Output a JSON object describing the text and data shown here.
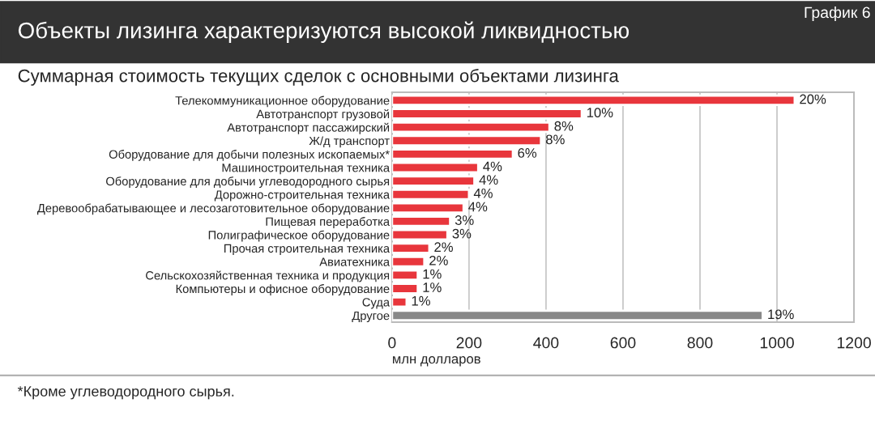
{
  "chart_data": {
    "type": "bar",
    "orientation": "horizontal",
    "title": "Объекты лизинга характеризуются высокой ликвидностью",
    "subtitle": "Суммарная стоимость текущих сделок с основными объектами лизинга",
    "xlabel": "млн долларов",
    "categories": [
      "Телекоммуникационное оборудование",
      "Автотранспорт грузовой",
      "Автотранспорт пассажирский",
      "Ж/д транспорт",
      "Оборудование для добычи полезных ископаемых*",
      "Машиностроительная техника",
      "Оборудование для добычи углеводородного сырья",
      "Дорожно-строительная техника",
      "Деревообрабатывающее и лесозаготовительное оборудование",
      "Пищевая переработка",
      "Полиграфическое оборудование",
      "Прочая строительная техника",
      "Авиатехника",
      "Сельскохозяйственная техника и продукция",
      "Компьютеры и офисное оборудование",
      "Суда",
      "Другое"
    ],
    "values": [
      1046,
      493,
      409,
      387,
      314,
      224,
      214,
      200,
      186,
      151,
      144,
      97,
      84,
      67,
      67,
      38,
      963
    ],
    "colors": [
      "#e8363c",
      "#e8363c",
      "#e8363c",
      "#e8363c",
      "#e8363c",
      "#e8363c",
      "#e8363c",
      "#e8363c",
      "#e8363c",
      "#e8363c",
      "#e8363c",
      "#e8363c",
      "#e8363c",
      "#e8363c",
      "#e8363c",
      "#e8363c",
      "#888888"
    ],
    "xlim": [
      0,
      1200
    ],
    "xticks": [
      0,
      200,
      400,
      600,
      800,
      1000,
      1200
    ],
    "grid": "x",
    "legend": false,
    "annotations": [
      "График 6",
      "*Кроме углеводородного сырья.",
      {
        "text": "20%",
        "x": 1046,
        "y": "Телекоммуникационное оборудование"
      },
      {
        "text": "10%",
        "x": 493,
        "y": "Автотранспорт грузовой"
      },
      {
        "text": "8%",
        "x": 409,
        "y": "Автотранспорт пассажирский"
      },
      {
        "text": "8%",
        "x": 387,
        "y": "Ж/д транспорт"
      },
      {
        "text": "6%",
        "x": 314,
        "y": "Оборудование для добычи полезных ископаемых*"
      },
      {
        "text": "4%",
        "x": 224,
        "y": "Машиностроительная техника"
      },
      {
        "text": "4%",
        "x": 214,
        "y": "Оборудование для добычи углеводородного сырья"
      },
      {
        "text": "4%",
        "x": 200,
        "y": "Дорожно-строительная техника"
      },
      {
        "text": "4%",
        "x": 186,
        "y": "Деревообрабатывающее и лесозаготовительное оборудование"
      },
      {
        "text": "3%",
        "x": 151,
        "y": "Пищевая переработка"
      },
      {
        "text": "3%",
        "x": 144,
        "y": "Полиграфическое оборудование"
      },
      {
        "text": "2%",
        "x": 97,
        "y": "Прочая строительная техника"
      },
      {
        "text": "2%",
        "x": 84,
        "y": "Авиатехника"
      },
      {
        "text": "1%",
        "x": 67,
        "y": "Сельскохозяйственная техника и продукция"
      },
      {
        "text": "1%",
        "x": 67,
        "y": "Компьютеры и офисное оборудование"
      },
      {
        "text": "1%",
        "x": 38,
        "y": "Суда"
      },
      {
        "text": "19%",
        "x": 963,
        "y": "Другое"
      }
    ]
  }
}
